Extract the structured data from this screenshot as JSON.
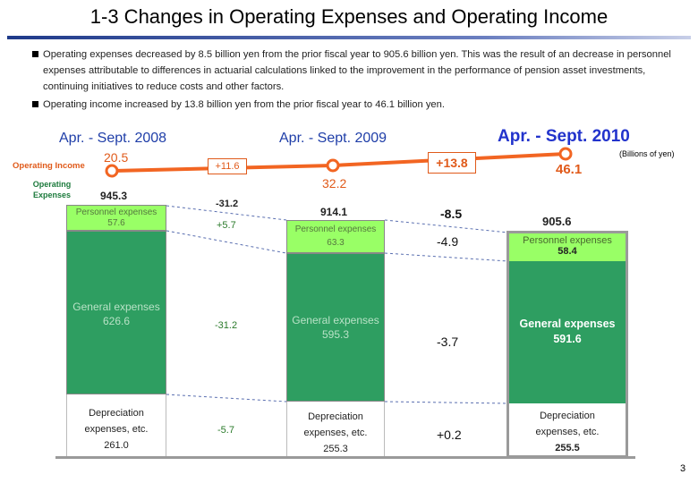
{
  "title": "1-3 Changes in Operating Expenses and Operating Income",
  "bullets": [
    "Operating expenses decreased by 8.5 billion yen from the prior fiscal year to 905.6 billion yen. This was the result of an decrease in personnel expenses attributable to differences in actuarial calculations linked to the improvement in the performance of pension asset investments, continuing initiatives to reduce costs and other factors.",
    "Operating income increased by 13.8 billion yen from the prior fiscal year to 46.1 billion yen."
  ],
  "unit": "(Billions of yen)",
  "page_number": "3",
  "colors": {
    "income_line": "#f26522",
    "general": "#2e9e61",
    "personnel": "#99ff66",
    "period_accent": "#2233cc"
  },
  "chart_data": {
    "type": "bar",
    "stacked": true,
    "categories": [
      "Apr. - Sept. 2008",
      "Apr. - Sept. 2009",
      "Apr. - Sept. 2010"
    ],
    "operating_income_label": "Operating Income",
    "operating_expenses_label": "Operating Expenses",
    "operating_income": [
      "20.5",
      "32.2",
      "46.1"
    ],
    "operating_income_changes": [
      "+11.6",
      "+13.8"
    ],
    "operating_expenses_totals": [
      "945.3",
      "914.1",
      "905.6"
    ],
    "series": [
      {
        "name": "Personnel expenses",
        "values": [
          57.6,
          63.3,
          58.4
        ],
        "labels": [
          "57.6",
          "63.3",
          "58.4"
        ]
      },
      {
        "name": "General expenses",
        "values": [
          626.6,
          595.3,
          591.6
        ],
        "labels": [
          "626.6",
          "595.3",
          "591.6"
        ]
      },
      {
        "name": "Depreciation expenses, etc.",
        "name_parts": [
          "Depreciation",
          "expenses, etc."
        ],
        "values": [
          261.0,
          255.3,
          255.5
        ],
        "labels": [
          "261.0",
          "255.3",
          "255.5"
        ]
      }
    ],
    "expense_changes": [
      {
        "total": "-31.2",
        "personnel": "+5.7",
        "general": "-31.2",
        "depreciation": "-5.7"
      },
      {
        "total": "-8.5",
        "personnel": "-4.9",
        "general": "-3.7",
        "depreciation": "+0.2"
      }
    ]
  }
}
